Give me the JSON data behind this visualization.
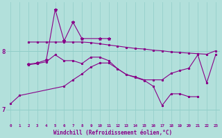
{
  "bg_color": "#b2e0db",
  "line_color": "#880088",
  "grid_color": "#90cdc8",
  "xlabel": "Windchill (Refroidissement éolien,°C)",
  "ylim": [
    6.75,
    8.85
  ],
  "xlim": [
    -0.5,
    23.5
  ],
  "yticks": [
    7,
    8
  ],
  "xticks": [
    0,
    1,
    2,
    3,
    4,
    5,
    6,
    7,
    8,
    9,
    10,
    11,
    12,
    13,
    14,
    15,
    16,
    17,
    18,
    19,
    20,
    21,
    22,
    23
  ],
  "line_spike_x": [
    2,
    3,
    4,
    5,
    6,
    7,
    8,
    10,
    11
  ],
  "line_spike_y": [
    7.78,
    7.8,
    7.85,
    8.72,
    8.18,
    8.5,
    8.22,
    8.22,
    8.22
  ],
  "line_flat_x": [
    2,
    3,
    4,
    5,
    6,
    7,
    8,
    9,
    10,
    11,
    12,
    13,
    14,
    15,
    16,
    17,
    18,
    19,
    20,
    21,
    22,
    23
  ],
  "line_flat_y": [
    8.16,
    8.16,
    8.16,
    8.16,
    8.16,
    8.16,
    8.16,
    8.15,
    8.13,
    8.11,
    8.09,
    8.07,
    8.05,
    8.04,
    8.02,
    8.01,
    7.99,
    7.98,
    7.97,
    7.96,
    7.95,
    8.01
  ],
  "line_mid_x": [
    2,
    3,
    4,
    5,
    6,
    7,
    8,
    9,
    10,
    11,
    12,
    13,
    14,
    15,
    16,
    17,
    18,
    19,
    20,
    21,
    22,
    23
  ],
  "line_mid_y": [
    7.77,
    7.79,
    7.82,
    7.94,
    7.84,
    7.84,
    7.79,
    7.9,
    7.9,
    7.84,
    7.7,
    7.6,
    7.56,
    7.51,
    7.51,
    7.51,
    7.62,
    7.67,
    7.71,
    7.94,
    7.46,
    7.94
  ],
  "line_low_x": [
    0,
    1,
    6,
    7,
    8,
    9,
    10,
    11,
    12,
    13,
    14,
    15,
    16,
    17,
    18,
    19,
    20,
    21
  ],
  "line_low_y": [
    7.1,
    7.24,
    7.4,
    7.51,
    7.61,
    7.73,
    7.8,
    7.8,
    7.7,
    7.6,
    7.55,
    7.5,
    7.4,
    7.07,
    7.27,
    7.27,
    7.22,
    7.22
  ]
}
